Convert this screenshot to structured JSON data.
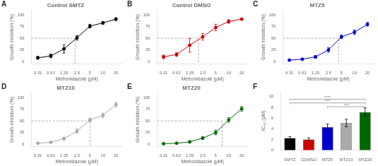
{
  "chart_data": [
    {
      "type": "line",
      "title": "Control SMTZ",
      "x_label": "Metronidazole (μM)",
      "y_label": "Growth inhibition (%)",
      "annotations": [
        "A"
      ],
      "log": "x",
      "grid": false,
      "color": "black",
      "x": [
        0.31,
        0.62,
        1.25,
        2.5,
        5,
        10,
        20
      ],
      "values": [
        8,
        12,
        27,
        51,
        76,
        83,
        91
      ],
      "errors": [
        3,
        4,
        9,
        5,
        4,
        3,
        3
      ],
      "reference_lines": {
        "x": 2.26,
        "y": 50
      },
      "xlim": [
        0.22,
        28
      ],
      "xticks": [
        0.31,
        0.62,
        1.25,
        2.5,
        5,
        10,
        20
      ],
      "ylim": [
        -5,
        110
      ],
      "yticks": [
        0,
        25,
        50,
        75,
        100
      ]
    },
    {
      "type": "line",
      "title": "Control DMSO",
      "x_label": "Metronidazole (μM)",
      "y_label": "Growth inhibition (%)",
      "annotations": [
        "B"
      ],
      "log": "x",
      "grid": false,
      "color": "#cc0000",
      "x": [
        0.31,
        0.62,
        1.25,
        2.5,
        5,
        10,
        20
      ],
      "values": [
        10,
        15,
        35,
        53,
        73,
        86,
        91
      ],
      "errors": [
        4,
        4,
        15,
        7,
        7,
        4,
        2
      ],
      "reference_lines": {
        "x": 2.02,
        "y": 50
      },
      "xlim": [
        0.22,
        28
      ],
      "xticks": [
        0.31,
        0.62,
        1.25,
        2.5,
        5,
        10,
        20
      ],
      "ylim": [
        -5,
        110
      ],
      "yticks": [
        0,
        25,
        50,
        75,
        100
      ]
    },
    {
      "type": "line",
      "title": "MTZ5",
      "x_label": "Metronidazole (μM)",
      "y_label": "Growth inhibition (%)",
      "annotations": [
        "C"
      ],
      "log": "x",
      "grid": false,
      "color": "#0000cc",
      "x": [
        0.31,
        0.62,
        1.25,
        2.5,
        5,
        10,
        20
      ],
      "values": [
        3,
        5,
        10,
        25,
        53,
        63,
        80
      ],
      "errors": [
        1,
        2,
        3,
        5,
        4,
        5,
        4
      ],
      "reference_lines": {
        "x": 4.3,
        "y": 50
      },
      "xlim": [
        0.22,
        28
      ],
      "xticks": [
        0.31,
        0.62,
        1.25,
        2.5,
        5,
        10,
        20
      ],
      "ylim": [
        -5,
        110
      ],
      "yticks": [
        0,
        25,
        50,
        75,
        100
      ]
    },
    {
      "type": "line",
      "title": "MTZ10",
      "x_label": "Metronidazole (μM)",
      "y_label": "Growth inhibition (%)",
      "annotations": [
        "D"
      ],
      "log": "x",
      "grid": false,
      "color": "#aaaaaa",
      "x": [
        0.31,
        0.62,
        1.25,
        2.5,
        5,
        10,
        20
      ],
      "values": [
        2,
        4,
        12,
        28,
        52,
        62,
        85
      ],
      "errors": [
        1,
        1,
        3,
        5,
        4,
        5,
        5
      ],
      "reference_lines": {
        "x": 5.07,
        "y": 50
      },
      "xlim": [
        0.22,
        28
      ],
      "xticks": [
        0.31,
        0.62,
        1.25,
        2.5,
        5,
        10,
        20
      ],
      "ylim": [
        -5,
        110
      ],
      "yticks": [
        0,
        25,
        50,
        75,
        100
      ]
    },
    {
      "type": "line",
      "title": "MTZ20",
      "x_label": "Metronidazole (μM)",
      "y_label": "Growth inhibition (%)",
      "annotations": [
        "E"
      ],
      "log": "x",
      "grid": false,
      "color": "#006600",
      "x": [
        0.31,
        0.62,
        1.25,
        2.5,
        5,
        10,
        20
      ],
      "values": [
        1,
        2,
        5,
        13,
        25,
        52,
        76
      ],
      "errors": [
        1,
        1,
        2,
        3,
        5,
        5,
        5
      ],
      "reference_lines": {
        "x": 7.09,
        "y": 50
      },
      "xlim": [
        0.22,
        28
      ],
      "xticks": [
        0.31,
        0.62,
        1.25,
        2.5,
        5,
        10,
        20
      ],
      "ylim": [
        -5,
        110
      ],
      "yticks": [
        0,
        25,
        50,
        75,
        100
      ]
    },
    {
      "type": "bar",
      "y_label": "IC₅₀ (μM)",
      "annotations": [
        "F"
      ],
      "grid": false,
      "categories": [
        "SMTZ",
        "CDMSO",
        "MTZ5",
        "MTZ10",
        "MTZ20"
      ],
      "values": [
        2.26,
        2.02,
        4.3,
        5.07,
        7.09
      ],
      "errors": [
        0.3,
        0.3,
        0.6,
        0.7,
        0.8
      ],
      "colors": [
        "black",
        "#cc0000",
        "#0000cc",
        "#aaaaaa",
        "#006600"
      ],
      "brackets": [
        {
          "y": 9.5,
          "from": "SMTZ",
          "to": "MTZ20",
          "label": "****"
        },
        {
          "y": 8.8,
          "from": "SMTZ",
          "to": "MTZ20",
          "label": "***"
        },
        {
          "y": 8.1,
          "from": "MTZ5",
          "to": "MTZ20",
          "label": "***"
        }
      ],
      "ylim": [
        0,
        11
      ],
      "yticks": [
        0,
        2,
        4,
        6,
        8,
        10
      ]
    }
  ]
}
